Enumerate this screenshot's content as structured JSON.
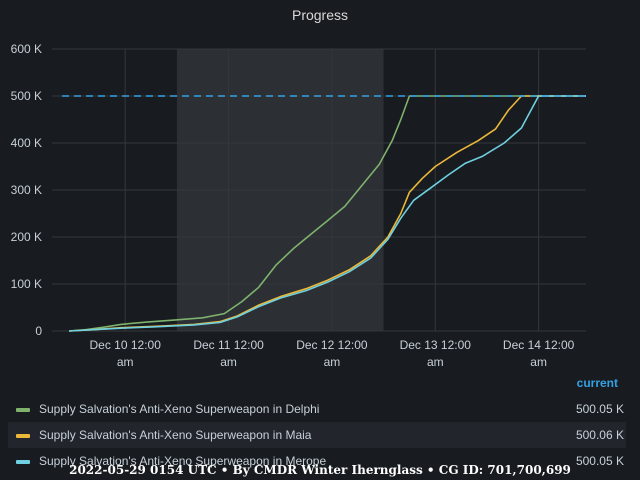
{
  "chart_data": {
    "type": "line",
    "title": "Progress",
    "y_ticks": [
      "0",
      "100 K",
      "200 K",
      "300 K",
      "400 K",
      "500 K",
      "600 K"
    ],
    "ylim": [
      0,
      600000
    ],
    "x_range": [
      "2021-12-09 19:00",
      "2021-12-14 23:00"
    ],
    "x_ticks": [
      {
        "t": "2021-12-10 12:00",
        "line1": "Dec 10 12:00",
        "line2": "am"
      },
      {
        "t": "2021-12-11 12:00",
        "line1": "Dec 11 12:00",
        "line2": "am"
      },
      {
        "t": "2021-12-12 12:00",
        "line1": "Dec 12 12:00",
        "line2": "am"
      },
      {
        "t": "2021-12-13 12:00",
        "line1": "Dec 13 12:00",
        "line2": "am"
      },
      {
        "t": "2021-12-14 12:00",
        "line1": "Dec 14 12:00",
        "line2": "am"
      }
    ],
    "highlight_range": [
      "2021-12-11 00:00",
      "2021-12-13 00:00"
    ],
    "target_line": {
      "value": 500000,
      "color": "#33a2e5",
      "style": "dashed"
    },
    "grid": true,
    "legend_position": "bottom",
    "series": [
      {
        "name": "Supply Salvation's Anti-Xeno Superweapon in Delphi",
        "color": "#7eb26d",
        "points": [
          [
            "2021-12-09 23:00",
            0
          ],
          [
            "2021-12-10 03:00",
            3000
          ],
          [
            "2021-12-10 07:00",
            8000
          ],
          [
            "2021-12-10 11:00",
            14000
          ],
          [
            "2021-12-10 17:00",
            19000
          ],
          [
            "2021-12-10 23:00",
            23000
          ],
          [
            "2021-12-11 06:00",
            28000
          ],
          [
            "2021-12-11 11:00",
            37000
          ],
          [
            "2021-12-11 15:00",
            62000
          ],
          [
            "2021-12-11 19:00",
            93000
          ],
          [
            "2021-12-11 23:00",
            140000
          ],
          [
            "2021-12-12 03:00",
            175000
          ],
          [
            "2021-12-12 07:00",
            205000
          ],
          [
            "2021-12-12 11:00",
            235000
          ],
          [
            "2021-12-12 15:00",
            265000
          ],
          [
            "2021-12-12 19:00",
            310000
          ],
          [
            "2021-12-12 23:00",
            355000
          ],
          [
            "2021-12-13 02:00",
            405000
          ],
          [
            "2021-12-13 04:00",
            450000
          ],
          [
            "2021-12-13 06:00",
            500050
          ],
          [
            "2021-12-14 23:00",
            500050
          ]
        ]
      },
      {
        "name": "Supply Salvation's Anti-Xeno Superweapon in Maia",
        "color": "#eab839",
        "points": [
          [
            "2021-12-09 23:00",
            0
          ],
          [
            "2021-12-10 05:00",
            3000
          ],
          [
            "2021-12-10 11:00",
            7000
          ],
          [
            "2021-12-10 19:00",
            10000
          ],
          [
            "2021-12-11 04:00",
            14000
          ],
          [
            "2021-12-11 10:00",
            20000
          ],
          [
            "2021-12-11 14:00",
            32000
          ],
          [
            "2021-12-11 19:00",
            55000
          ],
          [
            "2021-12-12 00:00",
            73000
          ],
          [
            "2021-12-12 06:00",
            90000
          ],
          [
            "2021-12-12 11:00",
            108000
          ],
          [
            "2021-12-12 16:00",
            130000
          ],
          [
            "2021-12-12 21:00",
            160000
          ],
          [
            "2021-12-13 01:00",
            200000
          ],
          [
            "2021-12-13 04:00",
            250000
          ],
          [
            "2021-12-13 06:00",
            295000
          ],
          [
            "2021-12-13 09:00",
            325000
          ],
          [
            "2021-12-13 12:00",
            350000
          ],
          [
            "2021-12-13 17:00",
            380000
          ],
          [
            "2021-12-13 22:00",
            405000
          ],
          [
            "2021-12-14 02:00",
            430000
          ],
          [
            "2021-12-14 05:00",
            470000
          ],
          [
            "2021-12-14 08:00",
            500060
          ],
          [
            "2021-12-14 23:00",
            500060
          ]
        ]
      },
      {
        "name": "Supply Salvation's Anti-Xeno Superweapon in Merope",
        "color": "#6ed0e0",
        "points": [
          [
            "2021-12-09 23:00",
            0
          ],
          [
            "2021-12-10 05:00",
            3000
          ],
          [
            "2021-12-10 11:00",
            6000
          ],
          [
            "2021-12-10 19:00",
            9000
          ],
          [
            "2021-12-11 04:00",
            13000
          ],
          [
            "2021-12-11 10:00",
            18000
          ],
          [
            "2021-12-11 14:00",
            30000
          ],
          [
            "2021-12-11 19:00",
            52000
          ],
          [
            "2021-12-12 00:00",
            70000
          ],
          [
            "2021-12-12 06:00",
            86000
          ],
          [
            "2021-12-12 11:00",
            104000
          ],
          [
            "2021-12-12 16:00",
            126000
          ],
          [
            "2021-12-12 21:00",
            155000
          ],
          [
            "2021-12-13 01:00",
            195000
          ],
          [
            "2021-12-13 04:00",
            240000
          ],
          [
            "2021-12-13 07:00",
            278000
          ],
          [
            "2021-12-13 11:00",
            305000
          ],
          [
            "2021-12-13 15:00",
            332000
          ],
          [
            "2021-12-13 19:00",
            357000
          ],
          [
            "2021-12-13 23:00",
            372000
          ],
          [
            "2021-12-14 04:00",
            400000
          ],
          [
            "2021-12-14 08:00",
            432000
          ],
          [
            "2021-12-14 12:00",
            500050
          ],
          [
            "2021-12-14 23:00",
            500050
          ]
        ]
      }
    ]
  },
  "legend": {
    "header": "current",
    "rows": [
      {
        "name": "Supply Salvation's Anti-Xeno Superweapon in Delphi",
        "color": "#7eb26d",
        "value": "500.05 K"
      },
      {
        "name": "Supply Salvation's Anti-Xeno Superweapon in Maia",
        "color": "#eab839",
        "value": "500.06 K"
      },
      {
        "name": "Supply Salvation's Anti-Xeno Superweapon in Merope",
        "color": "#6ed0e0",
        "value": "500.05 K"
      }
    ]
  },
  "footer": "2022-05-29 0154 UTC • By CMDR Winter Iherngl​ass • CG ID: 701,700,699"
}
